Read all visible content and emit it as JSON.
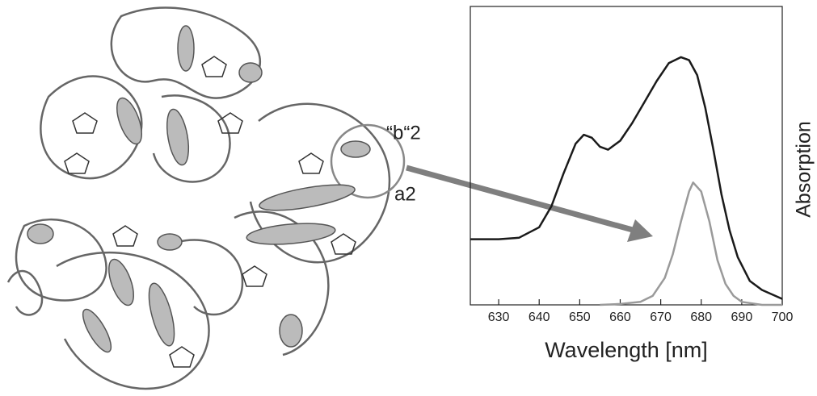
{
  "chart_data": {
    "type": "line",
    "xlabel": "Wavelength [nm]",
    "ylabel": "Absorption",
    "xlim": [
      623,
      700
    ],
    "xticks": [
      630,
      640,
      650,
      660,
      670,
      680,
      690,
      700
    ],
    "ylim": [
      0,
      1
    ],
    "annotations": [
      "“b“2",
      "a2"
    ],
    "series": [
      {
        "color": "#1a1a1a",
        "x": [
          623,
          630,
          635,
          640,
          643,
          646,
          649,
          651,
          653,
          655,
          657,
          660,
          663,
          666,
          669,
          672,
          675,
          677,
          679,
          681,
          683,
          685,
          687,
          689,
          692,
          695,
          700
        ],
        "values": [
          0.22,
          0.22,
          0.225,
          0.26,
          0.33,
          0.44,
          0.54,
          0.57,
          0.56,
          0.53,
          0.52,
          0.55,
          0.61,
          0.68,
          0.75,
          0.81,
          0.83,
          0.82,
          0.77,
          0.66,
          0.52,
          0.37,
          0.25,
          0.16,
          0.08,
          0.05,
          0.02
        ]
      },
      {
        "color": "#9a9a9a",
        "x": [
          655,
          660,
          665,
          668,
          671,
          673,
          675,
          677,
          678,
          680,
          682,
          684,
          686,
          688,
          690,
          695,
          700
        ],
        "values": [
          0,
          0.003,
          0.01,
          0.03,
          0.09,
          0.17,
          0.28,
          0.38,
          0.41,
          0.38,
          0.28,
          0.15,
          0.07,
          0.03,
          0.01,
          0,
          0
        ]
      }
    ]
  }
}
